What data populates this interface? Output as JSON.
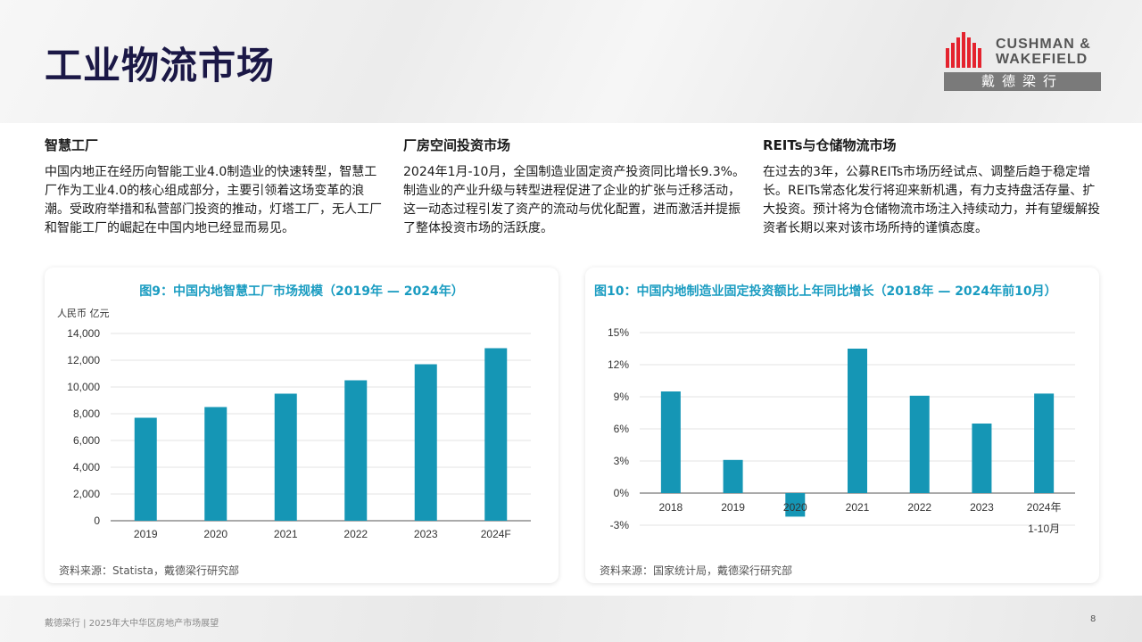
{
  "page": {
    "title": "工业物流市场",
    "footer_left": "戴德梁行 | 2025年大中华区房地产市场展望",
    "page_number": "8"
  },
  "logo": {
    "line1": "CUSHMAN &",
    "line2": "WAKEFIELD",
    "chinese": "戴德梁行",
    "brand_color": "#e4232e"
  },
  "columns": [
    {
      "heading": "智慧工厂",
      "body": "中国内地正在经历向智能工业4.0制造业的快速转型，智慧工厂作为工业4.0的核心组成部分，主要引领着这场变革的浪潮。受政府举措和私营部门投资的推动，灯塔工厂，无人工厂和智能工厂的崛起在中国内地已经显而易见。"
    },
    {
      "heading": "厂房空间投资市场",
      "body": "2024年1月-10月，全国制造业固定资产投资同比增长9.3%。 制造业的产业升级与转型进程促进了企业的扩张与迁移活动，这一动态过程引发了资产的流动与优化配置，进而激活并提振了整体投资市场的活跃度。"
    },
    {
      "heading": "REITs与仓储物流市场",
      "body": "在过去的3年，公募REITs市场历经试点、调整后趋于稳定增长。REITs常态化发行将迎来新机遇，有力支持盘活存量、扩大投资。预计将为仓储物流市场注入持续动力，并有望缓解投资者长期以来对该市场所持的谨慎态度。"
    }
  ],
  "charts": [
    {
      "title": "图9：中国内地智慧工厂市场规模（2019年 — 2024年）",
      "unit": "人民币 亿元",
      "source": "资料来源：Statista，戴德梁行研究部"
    },
    {
      "title": "图10：中国内地制造业固定投资额比上年同比增长（2018年 — 2024年前10月）",
      "source": "资料来源：国家统计局，戴德梁行研究部"
    }
  ],
  "chart_data": [
    {
      "type": "bar",
      "categories": [
        "2019",
        "2020",
        "2021",
        "2022",
        "2023",
        "2024F"
      ],
      "values": [
        7700,
        8500,
        9500,
        10500,
        11700,
        12900
      ],
      "ylim": [
        0,
        14000
      ],
      "yticks": [
        "0",
        "2,000",
        "4,000",
        "6,000",
        "8,000",
        "10,000",
        "12,000",
        "14,000"
      ],
      "ylabel": "人民币 亿元",
      "grid": true,
      "color": "#1596b5"
    },
    {
      "type": "bar",
      "categories": [
        "2018",
        "2019",
        "2020",
        "2021",
        "2022",
        "2023",
        "2024年 1-10月"
      ],
      "category_lines": [
        [
          "2018"
        ],
        [
          "2019"
        ],
        [
          "2020"
        ],
        [
          "2021"
        ],
        [
          "2022"
        ],
        [
          "2023"
        ],
        [
          "2024年",
          "1-10月"
        ]
      ],
      "values": [
        9.5,
        3.1,
        -2.2,
        13.5,
        9.1,
        6.5,
        9.3
      ],
      "ylim": [
        -3,
        15
      ],
      "yticks": [
        "-3%",
        "0%",
        "3%",
        "6%",
        "9%",
        "12%",
        "15%"
      ],
      "grid": true,
      "color": "#1596b5"
    }
  ]
}
